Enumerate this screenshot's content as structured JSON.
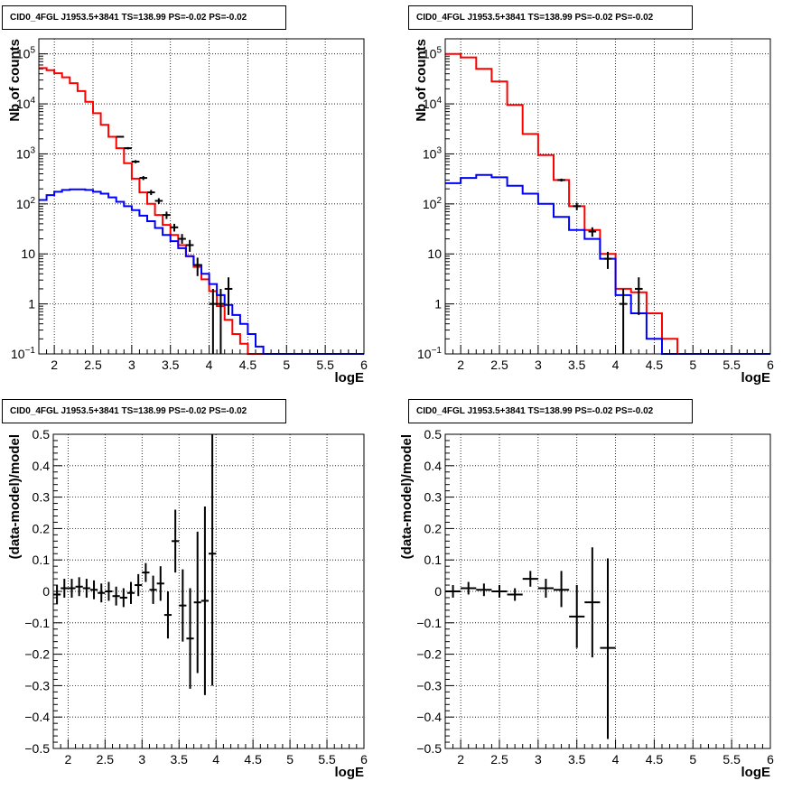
{
  "colors": {
    "data": "#000000",
    "total_model": "#ff0000",
    "source_model": "#0000ff",
    "grid": "#000000"
  },
  "chart_data": [
    {
      "id": "spectrum-left",
      "type": "line",
      "title": "CID0_4FGL J1953.5+3841 TS=138.99 PS=-0.02 PS=-0.02",
      "xlabel": "logE",
      "ylabel": "Nb of counts",
      "xlim": [
        1.8,
        6.0
      ],
      "ylim": [
        0.1,
        200000
      ],
      "ylog": true,
      "grid": true,
      "xticks": [
        {
          "v": 2,
          "label": "2"
        },
        {
          "v": 2.5,
          "label": "2.5"
        },
        {
          "v": 3,
          "label": "3"
        },
        {
          "v": 3.5,
          "label": "3.5"
        },
        {
          "v": 4,
          "label": "4"
        },
        {
          "v": 4.5,
          "label": "4.5"
        },
        {
          "v": 5,
          "label": "5"
        },
        {
          "v": 5.5,
          "label": "5.5"
        },
        {
          "v": 6,
          "label": "6"
        }
      ],
      "yticks": [
        {
          "v": 0.1,
          "base": "10",
          "exp": "−1"
        },
        {
          "v": 1,
          "label": "1"
        },
        {
          "v": 10,
          "label": "10"
        },
        {
          "v": 100,
          "base": "10",
          "exp": "2"
        },
        {
          "v": 1000,
          "base": "10",
          "exp": "3"
        },
        {
          "v": 10000,
          "base": "10",
          "exp": "4"
        },
        {
          "v": 100000,
          "base": "10",
          "exp": "5"
        }
      ],
      "bin_edges": [
        1.8,
        1.9,
        2.0,
        2.1,
        2.2,
        2.3,
        2.4,
        2.5,
        2.6,
        2.7,
        2.8,
        2.9,
        3.0,
        3.1,
        3.2,
        3.3,
        3.4,
        3.5,
        3.6,
        3.7,
        3.8,
        3.9,
        4.0,
        4.1,
        4.2,
        4.3,
        4.4,
        4.5,
        4.6,
        4.7,
        4.8,
        4.9,
        5.0,
        5.1,
        5.2,
        5.3,
        5.4,
        5.5,
        5.6,
        5.7,
        5.8,
        5.9,
        6.0
      ],
      "series": [
        {
          "name": "",
          "style": "step",
          "color_key": "total_model",
          "values": [
            52000,
            47000,
            41000,
            34000,
            26000,
            18000,
            11000,
            6500,
            3800,
            2200,
            1300,
            650,
            320,
            170,
            100,
            60,
            38,
            24,
            15,
            9,
            5.5,
            3.1,
            1.8,
            0.9,
            0.48,
            0.25,
            0.16,
            0.1,
            0.1,
            0.1,
            0.1,
            0.1,
            0.1,
            0.1,
            0.1,
            0.1,
            0.1,
            0.1,
            0.1,
            0.1,
            0.1,
            0.1
          ]
        },
        {
          "name": "",
          "style": "step",
          "color_key": "source_model",
          "values": [
            120,
            150,
            175,
            190,
            195,
            195,
            190,
            175,
            160,
            135,
            110,
            90,
            75,
            58,
            45,
            33,
            24,
            18,
            13,
            9,
            6,
            4,
            2.5,
            1.5,
            0.95,
            0.6,
            0.4,
            0.25,
            0.14,
            0.1,
            0.1,
            0.1,
            0.1,
            0.1,
            0.1,
            0.1,
            0.1,
            0.1,
            0.1,
            0.1,
            0.1,
            0.1
          ]
        },
        {
          "name": "",
          "style": "errorbar",
          "color_key": "data",
          "points": [
            {
              "x": 2.85,
              "y": 2200,
              "lo": 2110,
              "hi": 2290
            },
            {
              "x": 2.95,
              "y": 1300,
              "lo": 1230,
              "hi": 1370
            },
            {
              "x": 3.05,
              "y": 700,
              "lo": 650,
              "hi": 750
            },
            {
              "x": 3.15,
              "y": 330,
              "lo": 300,
              "hi": 360
            },
            {
              "x": 3.25,
              "y": 170,
              "lo": 150,
              "hi": 190
            },
            {
              "x": 3.35,
              "y": 115,
              "lo": 100,
              "hi": 130
            },
            {
              "x": 3.45,
              "y": 60,
              "lo": 50,
              "hi": 70
            },
            {
              "x": 3.55,
              "y": 34,
              "lo": 28,
              "hi": 40
            },
            {
              "x": 3.65,
              "y": 20,
              "lo": 16,
              "hi": 25
            },
            {
              "x": 3.75,
              "y": 15,
              "lo": 11,
              "hi": 19
            },
            {
              "x": 3.85,
              "y": 6,
              "lo": 3.6,
              "hi": 8.4
            },
            {
              "x": 4.05,
              "y": 1,
              "lo": 0.1,
              "hi": 2
            },
            {
              "x": 4.15,
              "y": 1,
              "lo": 0.1,
              "hi": 2
            },
            {
              "x": 4.25,
              "y": 2,
              "lo": 0.6,
              "hi": 3.4
            }
          ]
        }
      ]
    },
    {
      "id": "spectrum-right",
      "type": "line",
      "title": "CID0_4FGL J1953.5+3841 TS=138.99 PS=-0.02 PS=-0.02",
      "xlabel": "logE",
      "ylabel": "Nb of counts",
      "xlim": [
        1.8,
        6.0
      ],
      "ylim": [
        0.1,
        200000
      ],
      "ylog": true,
      "grid": true,
      "xticks": [
        {
          "v": 2,
          "label": "2"
        },
        {
          "v": 2.5,
          "label": "2.5"
        },
        {
          "v": 3,
          "label": "3"
        },
        {
          "v": 3.5,
          "label": "3.5"
        },
        {
          "v": 4,
          "label": "4"
        },
        {
          "v": 4.5,
          "label": "4.5"
        },
        {
          "v": 5,
          "label": "5"
        },
        {
          "v": 5.5,
          "label": "5.5"
        },
        {
          "v": 6,
          "label": "6"
        }
      ],
      "yticks": [
        {
          "v": 0.1,
          "base": "10",
          "exp": "−1"
        },
        {
          "v": 1,
          "label": "1"
        },
        {
          "v": 10,
          "label": "10"
        },
        {
          "v": 100,
          "base": "10",
          "exp": "2"
        },
        {
          "v": 1000,
          "base": "10",
          "exp": "3"
        },
        {
          "v": 10000,
          "base": "10",
          "exp": "4"
        },
        {
          "v": 100000,
          "base": "10",
          "exp": "5"
        }
      ],
      "bin_edges": [
        1.8,
        2.0,
        2.2,
        2.4,
        2.6,
        2.8,
        3.0,
        3.2,
        3.4,
        3.6,
        3.8,
        4.0,
        4.2,
        4.4,
        4.6,
        4.8,
        5.0,
        5.2,
        5.4,
        5.6,
        5.8,
        6.0
      ],
      "series": [
        {
          "name": "",
          "style": "step",
          "color_key": "total_model",
          "values": [
            100000,
            85000,
            50000,
            28000,
            9500,
            2500,
            950,
            300,
            90,
            30,
            10,
            2,
            1.7,
            0.65,
            0.2,
            0.1,
            0.1,
            0.1,
            0.1,
            0.1,
            0.1
          ]
        },
        {
          "name": "",
          "style": "step",
          "color_key": "source_model",
          "values": [
            260,
            330,
            380,
            340,
            230,
            160,
            100,
            55,
            30,
            20,
            8,
            1.5,
            0.65,
            0.2,
            0.1,
            0.1,
            0.1,
            0.1,
            0.1,
            0.1,
            0.1
          ]
        },
        {
          "name": "",
          "style": "errorbar",
          "color_key": "data",
          "points": [
            {
              "x": 3.3,
              "y": 300,
              "lo": 280,
              "hi": 320
            },
            {
              "x": 3.5,
              "y": 90,
              "lo": 75,
              "hi": 105
            },
            {
              "x": 3.7,
              "y": 28,
              "lo": 22,
              "hi": 34
            },
            {
              "x": 3.9,
              "y": 8,
              "lo": 5,
              "hi": 11
            },
            {
              "x": 4.1,
              "y": 1,
              "lo": 0.1,
              "hi": 2
            },
            {
              "x": 4.3,
              "y": 2,
              "lo": 0.6,
              "hi": 3.4
            }
          ]
        }
      ]
    },
    {
      "id": "residual-left",
      "type": "scatter",
      "title": "CID0_4FGL J1953.5+3841 TS=138.99 PS=-0.02 PS=-0.02",
      "xlabel": "logE",
      "ylabel": "(data-model)/model",
      "xlim": [
        1.8,
        6.0
      ],
      "ylim": [
        -0.5,
        0.5
      ],
      "ylog": false,
      "grid": true,
      "xticks": [
        {
          "v": 2,
          "label": "2"
        },
        {
          "v": 2.5,
          "label": "2.5"
        },
        {
          "v": 3,
          "label": "3"
        },
        {
          "v": 3.5,
          "label": "3.5"
        },
        {
          "v": 4,
          "label": "4"
        },
        {
          "v": 4.5,
          "label": "4.5"
        },
        {
          "v": 5,
          "label": "5"
        },
        {
          "v": 5.5,
          "label": "5.5"
        },
        {
          "v": 6,
          "label": "6"
        }
      ],
      "yticks": [
        {
          "v": -0.5,
          "label": "−0.5"
        },
        {
          "v": -0.4,
          "label": "−0.4"
        },
        {
          "v": -0.3,
          "label": "−0.3"
        },
        {
          "v": -0.2,
          "label": "−0.2"
        },
        {
          "v": -0.1,
          "label": "−0.1"
        },
        {
          "v": 0,
          "label": "0"
        },
        {
          "v": 0.1,
          "label": "0.1"
        },
        {
          "v": 0.2,
          "label": "0.2"
        },
        {
          "v": 0.3,
          "label": "0.3"
        },
        {
          "v": 0.4,
          "label": "0.4"
        },
        {
          "v": 0.5,
          "label": "0.5"
        }
      ],
      "series": [
        {
          "name": "",
          "style": "errorbar",
          "color_key": "data",
          "xerr": 0.05,
          "points": [
            {
              "x": 1.85,
              "y": -0.01,
              "lo": -0.04,
              "hi": 0.02
            },
            {
              "x": 1.95,
              "y": 0.01,
              "lo": -0.02,
              "hi": 0.04
            },
            {
              "x": 2.05,
              "y": 0.01,
              "lo": -0.02,
              "hi": 0.04
            },
            {
              "x": 2.15,
              "y": 0.015,
              "lo": -0.015,
              "hi": 0.045
            },
            {
              "x": 2.25,
              "y": 0.01,
              "lo": -0.02,
              "hi": 0.04
            },
            {
              "x": 2.35,
              "y": 0.005,
              "lo": -0.025,
              "hi": 0.035
            },
            {
              "x": 2.45,
              "y": -0.005,
              "lo": -0.035,
              "hi": 0.025
            },
            {
              "x": 2.55,
              "y": 0.0,
              "lo": -0.03,
              "hi": 0.03
            },
            {
              "x": 2.65,
              "y": -0.015,
              "lo": -0.045,
              "hi": 0.015
            },
            {
              "x": 2.75,
              "y": -0.02,
              "lo": -0.05,
              "hi": 0.01
            },
            {
              "x": 2.85,
              "y": -0.005,
              "lo": -0.04,
              "hi": 0.03
            },
            {
              "x": 2.95,
              "y": 0.02,
              "lo": -0.015,
              "hi": 0.055
            },
            {
              "x": 3.05,
              "y": 0.06,
              "lo": 0.03,
              "hi": 0.09
            },
            {
              "x": 3.15,
              "y": 0.005,
              "lo": -0.04,
              "hi": 0.05
            },
            {
              "x": 3.25,
              "y": 0.025,
              "lo": -0.03,
              "hi": 0.08
            },
            {
              "x": 3.35,
              "y": -0.075,
              "lo": -0.15,
              "hi": 0.0
            },
            {
              "x": 3.45,
              "y": 0.16,
              "lo": 0.06,
              "hi": 0.26
            },
            {
              "x": 3.55,
              "y": -0.045,
              "lo": -0.16,
              "hi": 0.07
            },
            {
              "x": 3.65,
              "y": -0.15,
              "lo": -0.31,
              "hi": 0.01
            },
            {
              "x": 3.75,
              "y": -0.035,
              "lo": -0.26,
              "hi": 0.19
            },
            {
              "x": 3.85,
              "y": -0.03,
              "lo": -0.33,
              "hi": 0.27
            },
            {
              "x": 3.95,
              "y": 0.12,
              "lo": -0.3,
              "hi": 0.5
            }
          ]
        }
      ]
    },
    {
      "id": "residual-right",
      "type": "scatter",
      "title": "CID0_4FGL J1953.5+3841 TS=138.99 PS=-0.02 PS=-0.02",
      "xlabel": "logE",
      "ylabel": "(data-model)/model",
      "xlim": [
        1.8,
        6.0
      ],
      "ylim": [
        -0.5,
        0.5
      ],
      "ylog": false,
      "grid": true,
      "xticks": [
        {
          "v": 2,
          "label": "2"
        },
        {
          "v": 2.5,
          "label": "2.5"
        },
        {
          "v": 3,
          "label": "3"
        },
        {
          "v": 3.5,
          "label": "3.5"
        },
        {
          "v": 4,
          "label": "4"
        },
        {
          "v": 4.5,
          "label": "4.5"
        },
        {
          "v": 5,
          "label": "5"
        },
        {
          "v": 5.5,
          "label": "5.5"
        },
        {
          "v": 6,
          "label": "6"
        }
      ],
      "yticks": [
        {
          "v": -0.5,
          "label": "−0.5"
        },
        {
          "v": -0.4,
          "label": "−0.4"
        },
        {
          "v": -0.3,
          "label": "−0.3"
        },
        {
          "v": -0.2,
          "label": "−0.2"
        },
        {
          "v": -0.1,
          "label": "−0.1"
        },
        {
          "v": 0,
          "label": "0"
        },
        {
          "v": 0.1,
          "label": "0.1"
        },
        {
          "v": 0.2,
          "label": "0.2"
        },
        {
          "v": 0.3,
          "label": "0.3"
        },
        {
          "v": 0.4,
          "label": "0.4"
        },
        {
          "v": 0.5,
          "label": "0.5"
        }
      ],
      "series": [
        {
          "name": "",
          "style": "errorbar",
          "color_key": "data",
          "xerr": 0.1,
          "points": [
            {
              "x": 1.9,
              "y": 0.0,
              "lo": -0.02,
              "hi": 0.02
            },
            {
              "x": 2.1,
              "y": 0.01,
              "lo": -0.01,
              "hi": 0.03
            },
            {
              "x": 2.3,
              "y": 0.005,
              "lo": -0.015,
              "hi": 0.025
            },
            {
              "x": 2.5,
              "y": 0.0,
              "lo": -0.02,
              "hi": 0.02
            },
            {
              "x": 2.7,
              "y": -0.01,
              "lo": -0.03,
              "hi": 0.01
            },
            {
              "x": 2.9,
              "y": 0.04,
              "lo": 0.015,
              "hi": 0.065
            },
            {
              "x": 3.1,
              "y": 0.01,
              "lo": -0.02,
              "hi": 0.04
            },
            {
              "x": 3.3,
              "y": 0.005,
              "lo": -0.05,
              "hi": 0.065
            },
            {
              "x": 3.5,
              "y": -0.08,
              "lo": -0.18,
              "hi": 0.02
            },
            {
              "x": 3.7,
              "y": -0.035,
              "lo": -0.21,
              "hi": 0.14
            },
            {
              "x": 3.9,
              "y": -0.18,
              "lo": -0.47,
              "hi": 0.105
            }
          ]
        }
      ]
    }
  ]
}
